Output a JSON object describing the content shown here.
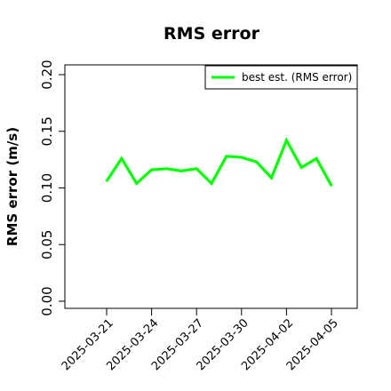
{
  "chart_data": {
    "type": "line",
    "title": "RMS error",
    "xlabel": "",
    "ylabel": "RMS error (m/s)",
    "ylim": [
      0,
      0.21
    ],
    "yticks": [
      "0.00",
      "0.05",
      "0.10",
      "0.15",
      "0.20"
    ],
    "xticks": [
      "2025-03-21",
      "2025-03-24",
      "2025-03-27",
      "2025-03-30",
      "2025-04-02",
      "2025-04-05"
    ],
    "highlight_tick": "2025-03-27",
    "highlight_color": "#228B22",
    "grid": false,
    "legend_position": "top-right",
    "series": [
      {
        "name": "best est. (RMS error)",
        "color": "#00ff00",
        "x": [
          "2025-03-21",
          "2025-03-22",
          "2025-03-23",
          "2025-03-24",
          "2025-03-25",
          "2025-03-26",
          "2025-03-27",
          "2025-03-28",
          "2025-03-29",
          "2025-03-30",
          "2025-03-31",
          "2025-04-01",
          "2025-04-02",
          "2025-04-03",
          "2025-04-04",
          "2025-04-05"
        ],
        "values": [
          0.106,
          0.126,
          0.104,
          0.116,
          0.117,
          0.115,
          0.117,
          0.104,
          0.128,
          0.127,
          0.123,
          0.109,
          0.142,
          0.118,
          0.126,
          0.102
        ]
      }
    ]
  }
}
